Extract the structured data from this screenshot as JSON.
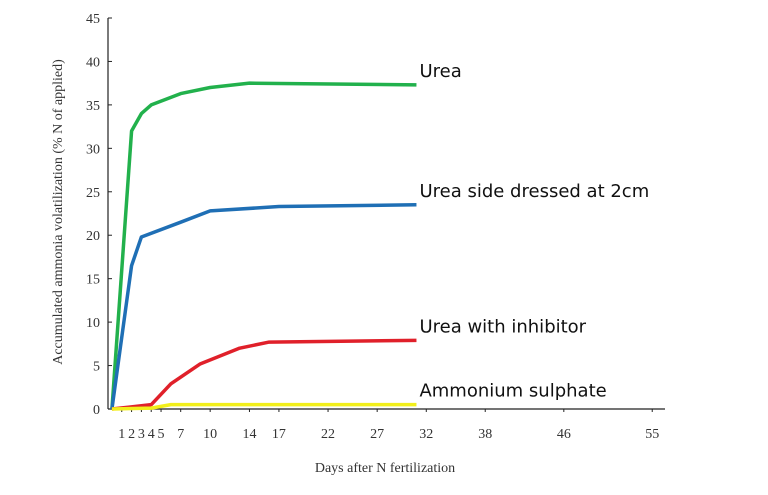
{
  "chart_data": {
    "type": "line",
    "x_label": "Days after N fertilization",
    "y_label": "Accumulated ammonia volatilization (% N of applied)",
    "xlim": [
      -0.4,
      56.3
    ],
    "ylim": [
      0,
      45
    ],
    "xticks": [
      1,
      2,
      3,
      4,
      5,
      7,
      10,
      14,
      17,
      22,
      27,
      32,
      38,
      46,
      55
    ],
    "yticks": [
      0,
      5,
      10,
      15,
      20,
      25,
      30,
      35,
      40,
      45
    ],
    "grid": false,
    "series": [
      {
        "name": "Urea",
        "color": "#22b14c",
        "x": [
          0,
          2,
          3,
          4,
          7,
          10,
          14,
          31
        ],
        "values": [
          0,
          32,
          34,
          35,
          36.3,
          37,
          37.5,
          37.3
        ]
      },
      {
        "name": "Urea side dressed at 2cm",
        "color": "#1f6fb5",
        "x": [
          0,
          2,
          3,
          7,
          10,
          17,
          31
        ],
        "values": [
          0,
          16.5,
          19.8,
          21.5,
          22.8,
          23.3,
          23.5
        ]
      },
      {
        "name": "Urea with inhibitor",
        "color": "#e0202a",
        "x": [
          0,
          4,
          6,
          9,
          13,
          16,
          31
        ],
        "values": [
          0,
          0.5,
          2.9,
          5.2,
          7,
          7.7,
          7.9
        ]
      },
      {
        "name": "Ammonium sulphate",
        "color": "#f2ef1a",
        "x": [
          0,
          4,
          6,
          31
        ],
        "values": [
          0,
          0.1,
          0.5,
          0.5
        ]
      }
    ]
  }
}
